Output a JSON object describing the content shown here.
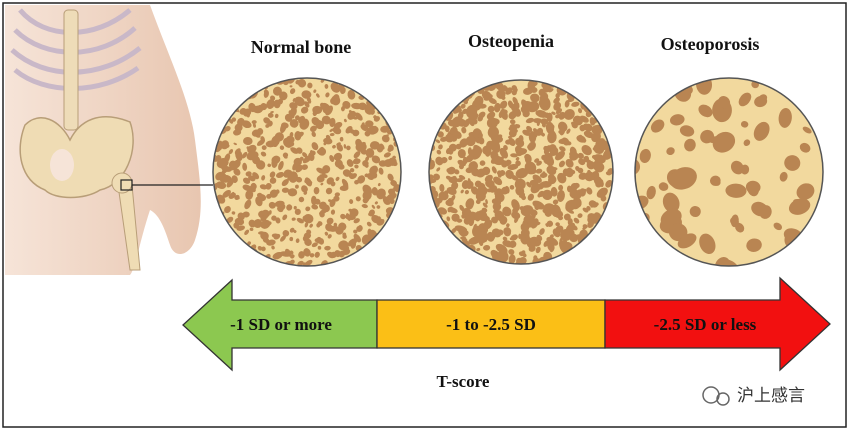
{
  "panels": [
    {
      "label": "Normal bone"
    },
    {
      "label": "Osteopenia"
    },
    {
      "label": "Osteoporosis"
    }
  ],
  "scale": {
    "segments": [
      {
        "label": "-1 SD or more"
      },
      {
        "label": "-1 to -2.5 SD"
      },
      {
        "label": "-2.5 SD or less"
      }
    ],
    "axis_label": "T-score"
  },
  "watermark": "沪上感言"
}
